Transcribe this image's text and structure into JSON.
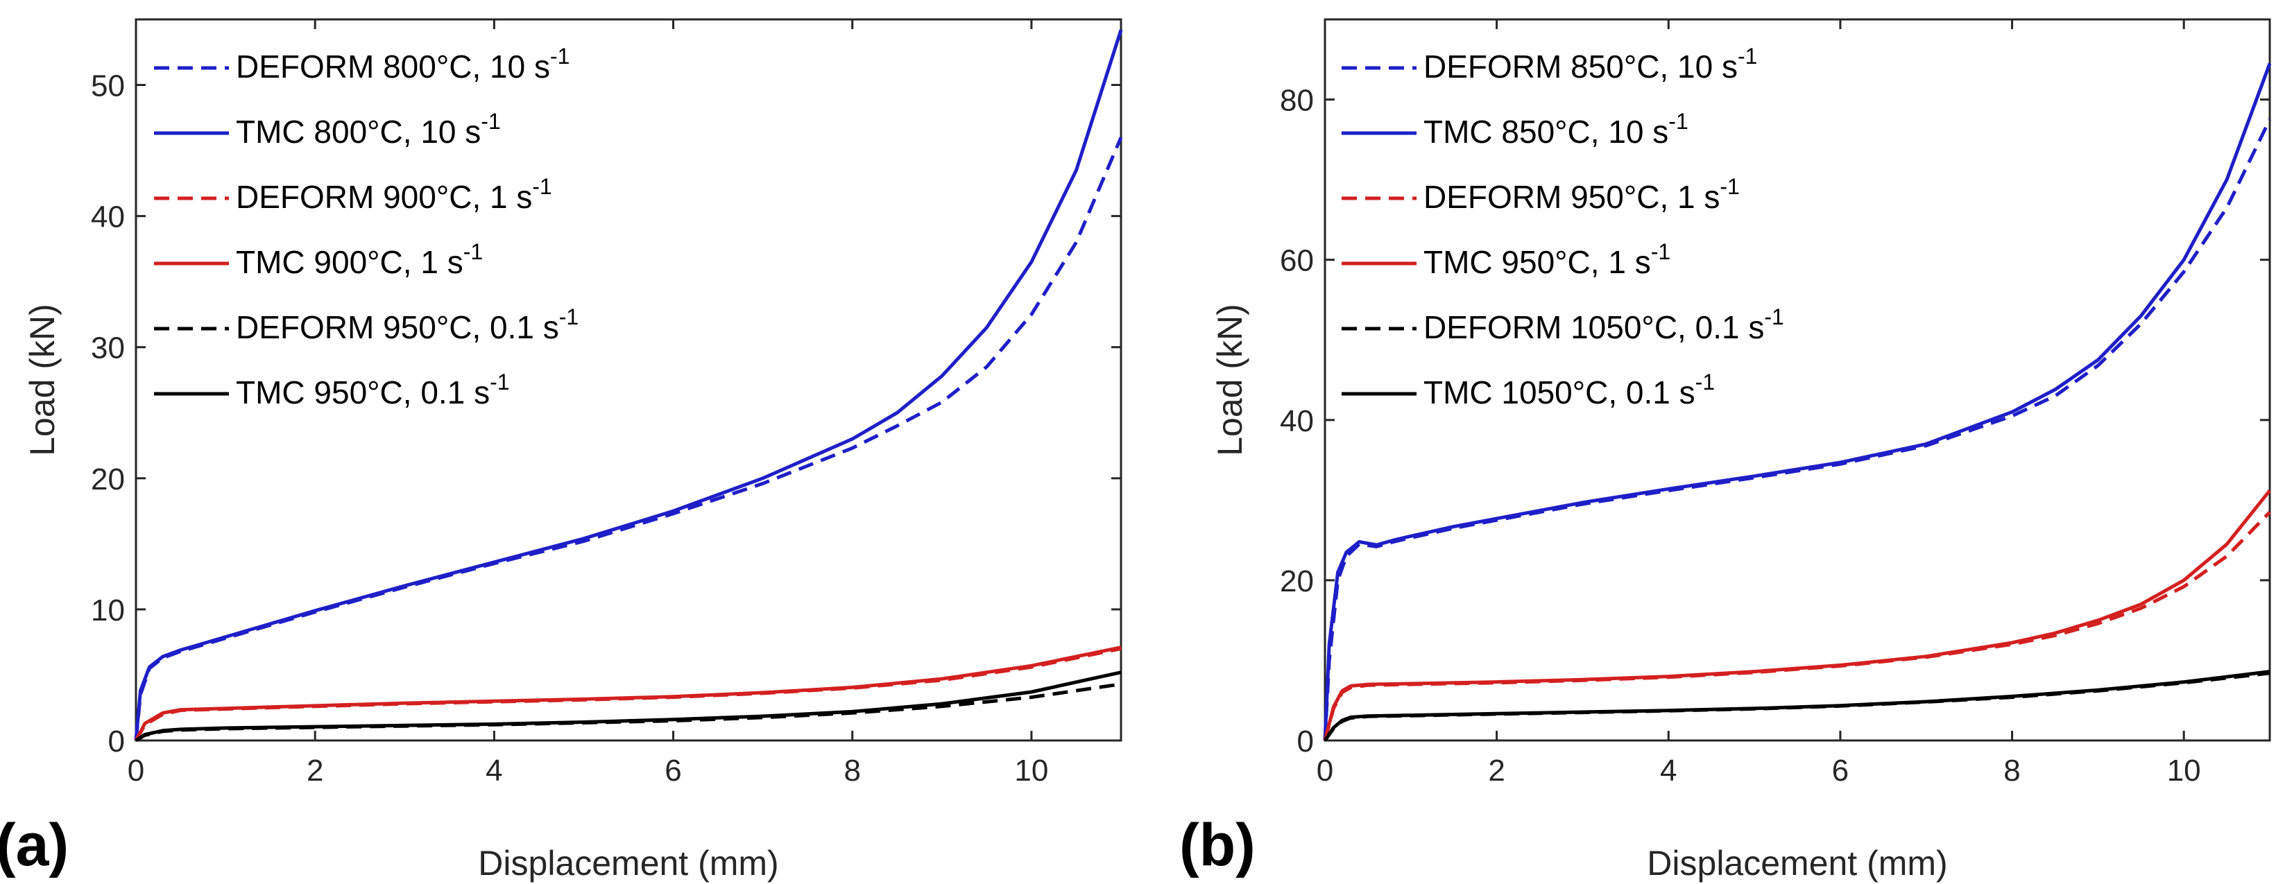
{
  "chart_data": [
    {
      "type": "line",
      "panel_label": "(a)",
      "xlabel": "Displacement (mm)",
      "ylabel": "Load (kN)",
      "xlim": [
        0,
        11
      ],
      "ylim": [
        0,
        55
      ],
      "xticks": [
        0,
        2,
        4,
        6,
        8,
        10
      ],
      "yticks": [
        0,
        10,
        20,
        30,
        40,
        50
      ],
      "legend_position": "top-left",
      "series": [
        {
          "name": "DEFORM 800°C, 10 s",
          "sup": "-1",
          "color": "#1f1fc8",
          "dash": true,
          "x": [
            0,
            0.05,
            0.15,
            0.3,
            0.5,
            0.7,
            1,
            2,
            3,
            4,
            5,
            6,
            7,
            8,
            8.5,
            9,
            9.5,
            10,
            10.5,
            11
          ],
          "y": [
            0,
            3.5,
            5.5,
            6.3,
            6.8,
            7.2,
            7.8,
            9.8,
            11.7,
            13.5,
            15.2,
            17.3,
            19.6,
            22.3,
            24,
            25.8,
            28.5,
            32.5,
            38,
            46
          ]
        },
        {
          "name": "TMC 800°C, 10 s",
          "sup": "-1",
          "color": "#1f1fc8",
          "dash": false,
          "x": [
            0,
            0.05,
            0.15,
            0.3,
            0.5,
            0.7,
            1,
            2,
            3,
            4,
            5,
            6,
            7,
            8,
            8.5,
            9,
            9.5,
            10,
            10.5,
            11
          ],
          "y": [
            0,
            3.8,
            5.6,
            6.4,
            6.9,
            7.3,
            7.9,
            9.9,
            11.8,
            13.6,
            15.4,
            17.5,
            20,
            23,
            25,
            27.8,
            31.5,
            36.5,
            43.5,
            54.2
          ]
        },
        {
          "name": "DEFORM 900°C, 1 s",
          "sup": "-1",
          "color": "#d42020",
          "dash": true,
          "x": [
            0,
            0.1,
            0.3,
            0.5,
            1,
            2,
            3,
            4,
            5,
            6,
            7,
            8,
            9,
            10,
            11
          ],
          "y": [
            0,
            1.2,
            2.0,
            2.3,
            2.4,
            2.6,
            2.8,
            2.95,
            3.1,
            3.3,
            3.6,
            4.0,
            4.6,
            5.6,
            7.0
          ]
        },
        {
          "name": "TMC 900°C, 1 s",
          "sup": "-1",
          "color": "#d42020",
          "dash": false,
          "x": [
            0,
            0.1,
            0.3,
            0.5,
            1,
            2,
            3,
            4,
            5,
            6,
            7,
            8,
            9,
            10,
            11
          ],
          "y": [
            0,
            1.3,
            2.1,
            2.35,
            2.45,
            2.65,
            2.85,
            3.0,
            3.15,
            3.35,
            3.65,
            4.05,
            4.7,
            5.7,
            7.1
          ]
        },
        {
          "name": "DEFORM 950°C, 0.1 s",
          "sup": "-1",
          "color": "#000000",
          "dash": true,
          "x": [
            0,
            0.1,
            0.3,
            0.5,
            1,
            2,
            3,
            4,
            5,
            6,
            7,
            8,
            9,
            10,
            11
          ],
          "y": [
            0,
            0.4,
            0.7,
            0.8,
            0.9,
            1.0,
            1.1,
            1.2,
            1.35,
            1.5,
            1.75,
            2.1,
            2.6,
            3.3,
            4.3
          ]
        },
        {
          "name": "TMC 950°C, 0.1 s",
          "sup": "-1",
          "color": "#000000",
          "dash": false,
          "x": [
            0,
            0.1,
            0.3,
            0.5,
            1,
            2,
            3,
            4,
            5,
            6,
            7,
            8,
            9,
            10,
            11
          ],
          "y": [
            0,
            0.45,
            0.75,
            0.85,
            0.95,
            1.05,
            1.15,
            1.25,
            1.4,
            1.6,
            1.85,
            2.2,
            2.8,
            3.7,
            5.2
          ]
        }
      ]
    },
    {
      "type": "line",
      "panel_label": "(b)",
      "xlabel": "Displacement (mm)",
      "ylabel": "Load (kN)",
      "xlim": [
        0,
        11
      ],
      "ylim": [
        0,
        90
      ],
      "xticks": [
        0,
        2,
        4,
        6,
        8,
        10
      ],
      "yticks": [
        0,
        20,
        40,
        60,
        80
      ],
      "legend_position": "top-left",
      "series": [
        {
          "name": "DEFORM 850°C, 10 s",
          "sup": "-1",
          "color": "#1f1fc8",
          "dash": true,
          "x": [
            0,
            0.05,
            0.15,
            0.25,
            0.4,
            0.6,
            0.8,
            1,
            1.5,
            2,
            3,
            4,
            5,
            6,
            7,
            8,
            8.5,
            9,
            9.5,
            10,
            10.5,
            11
          ],
          "y": [
            0,
            10,
            20,
            23,
            24.5,
            24.2,
            24.8,
            25.3,
            26.5,
            27.5,
            29.5,
            31.2,
            32.8,
            34.5,
            36.8,
            40.5,
            43,
            46.8,
            52,
            58.5,
            66.5,
            77.5
          ]
        },
        {
          "name": "TMC 850°C, 10 s",
          "sup": "-1",
          "color": "#1f1fc8",
          "dash": false,
          "x": [
            0,
            0.05,
            0.15,
            0.25,
            0.4,
            0.6,
            0.8,
            1,
            1.5,
            2,
            3,
            4,
            5,
            6,
            7,
            8,
            8.5,
            9,
            9.5,
            10,
            10.5,
            11
          ],
          "y": [
            0,
            12,
            21,
            23.5,
            24.8,
            24.4,
            25,
            25.5,
            26.7,
            27.7,
            29.7,
            31.4,
            33,
            34.7,
            37,
            41,
            43.8,
            47.5,
            53,
            60,
            70,
            84.5
          ]
        },
        {
          "name": "DEFORM 950°C, 1 s",
          "sup": "-1",
          "color": "#d42020",
          "dash": true,
          "x": [
            0,
            0.1,
            0.2,
            0.3,
            0.5,
            1,
            2,
            3,
            4,
            5,
            6,
            7,
            8,
            8.5,
            9,
            9.5,
            10,
            10.5,
            11
          ],
          "y": [
            0,
            4,
            6,
            6.6,
            6.9,
            7.0,
            7.2,
            7.5,
            7.9,
            8.5,
            9.3,
            10.4,
            12,
            13.1,
            14.6,
            16.5,
            19.2,
            23,
            28.5
          ]
        },
        {
          "name": "TMC 950°C, 1 s",
          "sup": "-1",
          "color": "#d42020",
          "dash": false,
          "x": [
            0,
            0.1,
            0.2,
            0.3,
            0.5,
            1,
            2,
            3,
            4,
            5,
            6,
            7,
            8,
            8.5,
            9,
            9.5,
            10,
            10.5,
            11
          ],
          "y": [
            0,
            4.2,
            6.2,
            6.8,
            7.0,
            7.1,
            7.3,
            7.6,
            8.0,
            8.6,
            9.4,
            10.5,
            12.2,
            13.4,
            15,
            17,
            20,
            24.5,
            31.2
          ]
        },
        {
          "name": "DEFORM 1050°C, 0.1 s",
          "sup": "-1",
          "color": "#000000",
          "dash": true,
          "x": [
            0,
            0.1,
            0.2,
            0.3,
            0.5,
            1,
            2,
            3,
            4,
            5,
            6,
            7,
            8,
            9,
            10,
            11
          ],
          "y": [
            0,
            1.5,
            2.4,
            2.8,
            3.0,
            3.1,
            3.3,
            3.5,
            3.7,
            3.95,
            4.3,
            4.8,
            5.4,
            6.2,
            7.2,
            8.4
          ]
        },
        {
          "name": "TMC 1050°C, 0.1 s",
          "sup": "-1",
          "color": "#000000",
          "dash": false,
          "x": [
            0,
            0.1,
            0.2,
            0.3,
            0.5,
            1,
            2,
            3,
            4,
            5,
            6,
            7,
            8,
            9,
            10,
            11
          ],
          "y": [
            0,
            1.6,
            2.5,
            2.9,
            3.05,
            3.15,
            3.35,
            3.55,
            3.75,
            4.0,
            4.35,
            4.85,
            5.5,
            6.3,
            7.3,
            8.6
          ]
        }
      ]
    }
  ]
}
